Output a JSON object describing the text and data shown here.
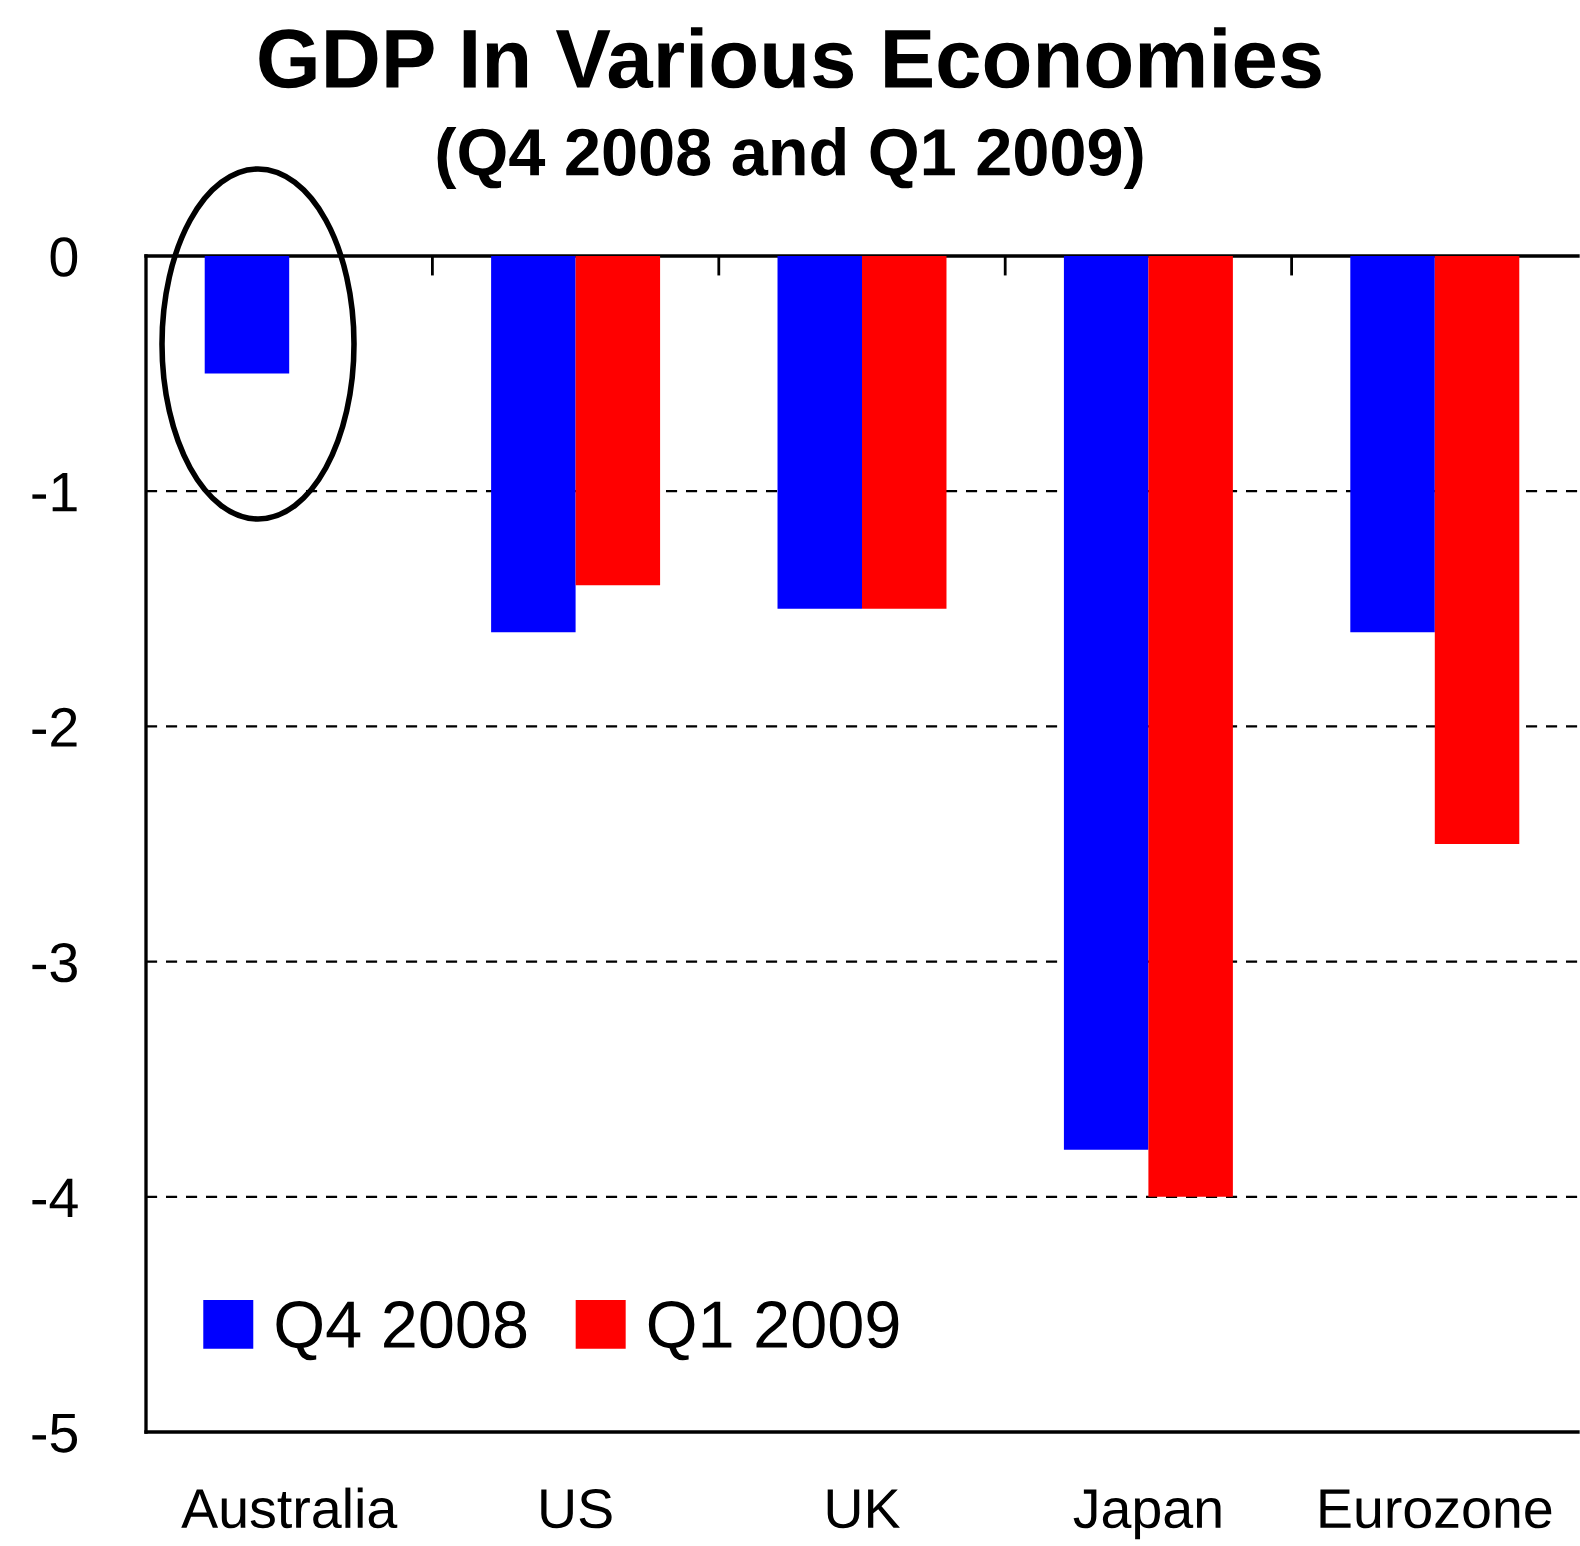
{
  "chart_data": {
    "type": "bar",
    "title": "GDP In Various Economies",
    "subtitle": "(Q4 2008 and Q1 2009)",
    "categories": [
      "Australia",
      "US",
      "UK",
      "Japan",
      "Eurozone"
    ],
    "series": [
      {
        "name": "Q4 2008",
        "color": "#0000ff",
        "values": [
          -0.5,
          -1.6,
          -1.5,
          -3.8,
          -1.6
        ]
      },
      {
        "name": "Q1 2009",
        "color": "#ff0000",
        "values": [
          null,
          -1.4,
          -1.5,
          -4.0,
          -2.5
        ]
      }
    ],
    "ylim": [
      -5,
      0
    ],
    "yticks": [
      -5,
      -4,
      -3,
      -2,
      -1,
      0
    ],
    "grid": "y",
    "legend": "bottom left"
  }
}
